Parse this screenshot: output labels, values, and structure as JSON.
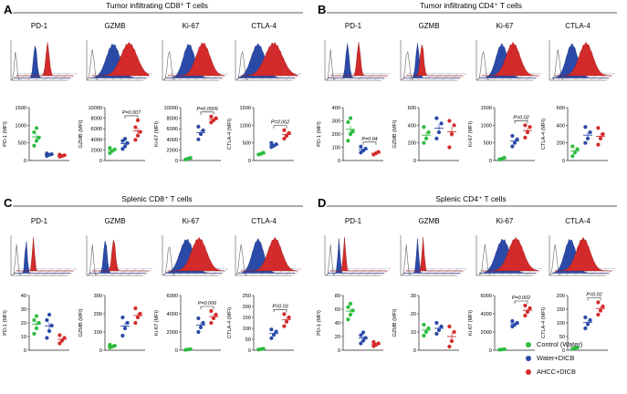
{
  "colors": {
    "control": "#2dbb3f",
    "water": "#2b4aa8",
    "ahcc": "#d32b2b",
    "axis": "#222222"
  },
  "legend": {
    "control": "Control (Water)",
    "water": "Water+DICB",
    "ahcc": "AHCC+DICB"
  },
  "chart_data": [
    {
      "letter": "A",
      "title": "Tumor infiltrating CD8⁺ T cells",
      "type": "scatter",
      "histogram_markers": [
        "PD-1",
        "GZMB",
        "Ki-67",
        "CTLA-4"
      ],
      "plots": [
        {
          "ylabel": "PD-1 (MFI)",
          "ticks": [
            "0",
            "500",
            "1000",
            "1500"
          ],
          "ylim": [
            0,
            1500
          ],
          "series": {
            "control": [
              420,
              560,
              650,
              800,
              920
            ],
            "water": [
              130,
              160,
              180,
              200
            ],
            "ahcc": [
              110,
              130,
              150,
              165
            ]
          },
          "annotation": null
        },
        {
          "ylabel": "GZMB (MFI)",
          "ticks": [
            "0",
            "2000",
            "4000",
            "6000",
            "8000",
            "10000"
          ],
          "ylim": [
            0,
            10000
          ],
          "series": {
            "control": [
              1400,
              1800,
              2100,
              2400
            ],
            "water": [
              2200,
              2700,
              3300,
              3700,
              4100
            ],
            "ahcc": [
              3900,
              4700,
              5400,
              6300,
              7600
            ]
          },
          "annotation": "P=0.007"
        },
        {
          "ylabel": "Ki-67 (MFI)",
          "ticks": [
            "0",
            "2000",
            "4000",
            "6000",
            "8000",
            "10000"
          ],
          "ylim": [
            0,
            10000
          ],
          "series": {
            "control": [
              200,
              350,
              500
            ],
            "water": [
              4000,
              5000,
              5700,
              6400
            ],
            "ahcc": [
              7200,
              7600,
              8000,
              8300
            ]
          },
          "annotation": "P=0.0009"
        },
        {
          "ylabel": "CTLA-4 (MFI)",
          "ticks": [
            "0",
            "500",
            "1000",
            "1500"
          ],
          "ylim": [
            0,
            1500
          ],
          "series": {
            "control": [
              170,
              190,
              220
            ],
            "water": [
              380,
              420,
              460,
              500
            ],
            "ahcc": [
              620,
              700,
              780,
              860
            ]
          },
          "annotation": "P=0.002"
        }
      ]
    },
    {
      "letter": "B",
      "title": "Tumor infiltrating CD4⁺ T cells",
      "type": "scatter",
      "histogram_markers": [
        "PD-1",
        "GZMB",
        "Ki-67",
        "CTLA-4"
      ],
      "plots": [
        {
          "ylabel": "PD-1 (MFI)",
          "ticks": [
            "0",
            "100",
            "200",
            "300",
            "400"
          ],
          "ylim": [
            0,
            400
          ],
          "series": {
            "control": [
              150,
              200,
              220,
              290,
              320
            ],
            "water": [
              60,
              75,
              90,
              105
            ],
            "ahcc": [
              45,
              55,
              65
            ]
          },
          "annotation": "P=0.04"
        },
        {
          "ylabel": "GZMB (MFI)",
          "ticks": [
            "0",
            "200",
            "400",
            "600"
          ],
          "ylim": [
            0,
            600
          ],
          "series": {
            "control": [
              200,
              250,
              320,
              380
            ],
            "water": [
              250,
              320,
              420,
              480
            ],
            "ahcc": [
              150,
              300,
              400,
              450
            ]
          },
          "annotation": null
        },
        {
          "ylabel": "Ki-67 (MFI)",
          "ticks": [
            "0",
            "500",
            "1000",
            "1500"
          ],
          "ylim": [
            0,
            1500
          ],
          "series": {
            "control": [
              30,
              50,
              80
            ],
            "water": [
              400,
              500,
              600,
              700
            ],
            "ahcc": [
              650,
              800,
              950,
              1000
            ]
          },
          "annotation": "P=0.02"
        },
        {
          "ylabel": "CTLA-4 (MFI)",
          "ticks": [
            "0",
            "200",
            "400",
            "600"
          ],
          "ylim": [
            0,
            600
          ],
          "series": {
            "control": [
              50,
              90,
              130,
              160
            ],
            "water": [
              200,
              250,
              320,
              380
            ],
            "ahcc": [
              180,
              250,
              300,
              370
            ]
          },
          "annotation": null
        }
      ]
    },
    {
      "letter": "C",
      "title": "Splenic CD8⁺ T cells",
      "type": "scatter",
      "histogram_markers": [
        "PD-1",
        "GZMB",
        "Ki-67",
        "CTLA-4"
      ],
      "plots": [
        {
          "ylabel": "PD-1 (MFI)",
          "ticks": [
            "0",
            "10",
            "20",
            "30",
            "40"
          ],
          "ylim": [
            0,
            40
          ],
          "series": {
            "control": [
              12,
              16,
              20,
              22,
              25
            ],
            "water": [
              9,
              14,
              18,
              22,
              26
            ],
            "ahcc": [
              5,
              7,
              9,
              11
            ]
          },
          "annotation": null
        },
        {
          "ylabel": "GZMB (MFI)",
          "ticks": [
            "0",
            "100",
            "200",
            "300"
          ],
          "ylim": [
            0,
            300
          ],
          "series": {
            "control": [
              15,
              20,
              25,
              30
            ],
            "water": [
              80,
              120,
              150,
              180
            ],
            "ahcc": [
              150,
              180,
              200,
              230
            ]
          },
          "annotation": null
        },
        {
          "ylabel": "Ki-67 (MFI)",
          "ticks": [
            "0",
            "2000",
            "4000",
            "6000"
          ],
          "ylim": [
            0,
            6000
          ],
          "series": {
            "control": [
              40,
              80,
              120
            ],
            "water": [
              2000,
              2500,
              3000,
              3500
            ],
            "ahcc": [
              3000,
              3500,
              3900,
              4300
            ]
          },
          "annotation": "P=0.006"
        },
        {
          "ylabel": "CTLA-4 (MFI)",
          "ticks": [
            "0",
            "50",
            "100",
            "150",
            "200",
            "250"
          ],
          "ylim": [
            0,
            250
          ],
          "series": {
            "control": [
              3,
              5,
              7
            ],
            "water": [
              55,
              70,
              85,
              95
            ],
            "ahcc": [
              110,
              130,
              150,
              165
            ]
          },
          "annotation": "P=0.03"
        }
      ]
    },
    {
      "letter": "D",
      "title": "Splenic CD4⁺ T cells",
      "type": "scatter",
      "histogram_markers": [
        "PD-1",
        "GZMB",
        "Ki-67",
        "CTLA-4"
      ],
      "plots": [
        {
          "ylabel": "PD-1 (MFI)",
          "ticks": [
            "0",
            "20",
            "40",
            "60",
            "80"
          ],
          "ylim": [
            0,
            80
          ],
          "series": {
            "control": [
              45,
              52,
              58,
              63,
              68
            ],
            "water": [
              10,
              14,
              18,
              22,
              26
            ],
            "ahcc": [
              6,
              8,
              10,
              12
            ]
          },
          "annotation": null
        },
        {
          "ylabel": "GZMB (MFI)",
          "ticks": [
            "0",
            "10",
            "20",
            "30"
          ],
          "ylim": [
            0,
            30
          ],
          "series": {
            "control": [
              8,
              10,
              12,
              14
            ],
            "water": [
              9,
              11,
              13,
              15
            ],
            "ahcc": [
              2,
              5,
              10,
              13
            ]
          },
          "annotation": null
        },
        {
          "ylabel": "Ki-67 (MFI)",
          "ticks": [
            "0",
            "2000",
            "4000",
            "6000"
          ],
          "ylim": [
            0,
            6000
          ],
          "series": {
            "control": [
              50,
              80,
              120
            ],
            "water": [
              2600,
              2800,
              3000,
              3200
            ],
            "ahcc": [
              3800,
              4200,
              4600,
              4900
            ]
          },
          "annotation": "P=0.002"
        },
        {
          "ylabel": "CTLA-4 (MFI)",
          "ticks": [
            "0",
            "50",
            "100",
            "150",
            "200"
          ],
          "ylim": [
            0,
            200
          ],
          "series": {
            "control": [
              5,
              8,
              10
            ],
            "water": [
              80,
              95,
              110,
              120
            ],
            "ahcc": [
              130,
              145,
              160,
              175
            ]
          },
          "annotation": "P=0.02"
        }
      ]
    }
  ]
}
